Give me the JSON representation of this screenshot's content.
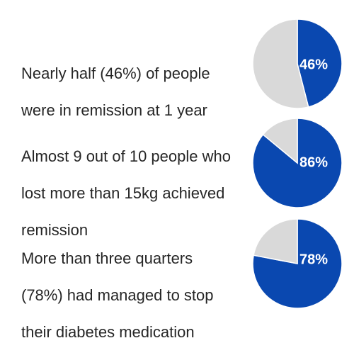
{
  "colors": {
    "highlight": "#0a48b0",
    "remainder": "#d9d9d9",
    "text": "#262626"
  },
  "stats": [
    {
      "lines": [
        "Nearly half (46%) of people",
        "were in remission at 1 year"
      ],
      "value_label": "46%"
    },
    {
      "lines": [
        "Almost 9 out of 10 people who",
        "lost more than 15kg achieved",
        "remission"
      ],
      "value_label": "86%"
    },
    {
      "lines": [
        "More than three quarters",
        "(78%) had managed to stop",
        "their diabetes medication"
      ],
      "value_label": "78%"
    }
  ],
  "chart_data": [
    {
      "type": "pie",
      "categories": [
        "Remission at 1 year",
        "Other"
      ],
      "values": [
        46,
        54
      ],
      "data_labels": [
        "46%",
        ""
      ]
    },
    {
      "type": "pie",
      "categories": [
        "Lost >15kg achieved remission",
        "Other"
      ],
      "values": [
        86,
        14
      ],
      "data_labels": [
        "86%",
        ""
      ]
    },
    {
      "type": "pie",
      "categories": [
        "Stopped diabetes medication",
        "Other"
      ],
      "values": [
        78,
        22
      ],
      "data_labels": [
        "78%",
        ""
      ]
    }
  ]
}
